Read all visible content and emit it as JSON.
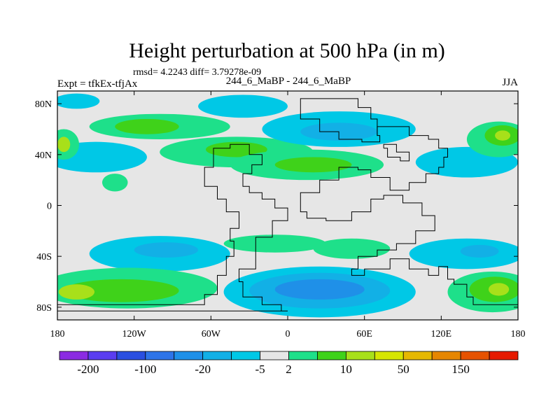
{
  "chart_data": {
    "type": "heatmap",
    "title": "Height perturbation at 500 hPa (in m)",
    "subtitle": "rmsd= 4.2243 diff= 3.79278e-09",
    "left_label": "Expt = tfkEx-tfjAx",
    "center_label": "244_6_MaBP - 244_6_MaBP",
    "right_label": "JJA",
    "xlim": [
      -180,
      180
    ],
    "ylim": [
      -90,
      90
    ],
    "x_ticks": [
      {
        "value": -180,
        "label": "180"
      },
      {
        "value": -120,
        "label": "120W"
      },
      {
        "value": -60,
        "label": "60W"
      },
      {
        "value": 0,
        "label": "0"
      },
      {
        "value": 60,
        "label": "60E"
      },
      {
        "value": 120,
        "label": "120E"
      },
      {
        "value": 180,
        "label": "180"
      }
    ],
    "y_ticks": [
      {
        "value": 80,
        "label": "80N"
      },
      {
        "value": 40,
        "label": "40N"
      },
      {
        "value": 0,
        "label": "0"
      },
      {
        "value": -40,
        "label": "40S"
      },
      {
        "value": -80,
        "label": "80S"
      }
    ],
    "colorbar": {
      "colors": [
        "#8b2be2",
        "#5a3df0",
        "#2a4fe0",
        "#2e74e8",
        "#1f90e8",
        "#12b0e6",
        "#00c8e6",
        "#e6e6e6",
        "#1ee08a",
        "#3fd21a",
        "#a8e01a",
        "#d6e600",
        "#e6b800",
        "#e68600",
        "#e65200",
        "#e61a00"
      ],
      "labels": [
        "-200",
        "-100",
        "-20",
        "-5",
        "2",
        "10",
        "50",
        "150"
      ],
      "label_edges": [
        1,
        3,
        5,
        7,
        8,
        10,
        12,
        14
      ]
    },
    "color_levels": {
      "cyan": "#00c8e6",
      "light_blue": "#12b0e6",
      "mid_blue": "#1f90e8",
      "teal": "#1ee08a",
      "green": "#3fd21a",
      "lime": "#a8e01a",
      "neutral": "#e6e6e6"
    },
    "anomaly_regions": [
      {
        "shape": "ellipse",
        "lon": -100,
        "lat": 62,
        "rlon": 55,
        "rlat": 10,
        "level": "teal"
      },
      {
        "shape": "ellipse",
        "lon": -110,
        "lat": 62,
        "rlon": 25,
        "rlat": 6,
        "level": "green"
      },
      {
        "shape": "ellipse",
        "lon": -165,
        "lat": 82,
        "rlon": 18,
        "rlat": 6,
        "level": "cyan"
      },
      {
        "shape": "ellipse",
        "lon": -35,
        "lat": 78,
        "rlon": 35,
        "rlat": 9,
        "level": "cyan"
      },
      {
        "shape": "ellipse",
        "lon": -150,
        "lat": 38,
        "rlon": 40,
        "rlat": 12,
        "level": "cyan"
      },
      {
        "shape": "ellipse",
        "lon": -175,
        "lat": 48,
        "rlon": 12,
        "rlat": 12,
        "level": "teal"
      },
      {
        "shape": "ellipse",
        "lon": -175,
        "lat": 48,
        "rlon": 5,
        "rlat": 6,
        "level": "lime"
      },
      {
        "shape": "ellipse",
        "lon": -135,
        "lat": 18,
        "rlon": 10,
        "rlat": 7,
        "level": "teal"
      },
      {
        "shape": "ellipse",
        "lon": -40,
        "lat": 42,
        "rlon": 60,
        "rlat": 12,
        "level": "teal"
      },
      {
        "shape": "ellipse",
        "lon": -40,
        "lat": 44,
        "rlon": 24,
        "rlat": 6,
        "level": "green"
      },
      {
        "shape": "ellipse",
        "lon": 40,
        "lat": 60,
        "rlon": 60,
        "rlat": 14,
        "level": "cyan"
      },
      {
        "shape": "ellipse",
        "lon": 40,
        "lat": 58,
        "rlon": 30,
        "rlat": 7,
        "level": "light_blue"
      },
      {
        "shape": "ellipse",
        "lon": 15,
        "lat": 32,
        "rlon": 60,
        "rlat": 12,
        "level": "teal"
      },
      {
        "shape": "ellipse",
        "lon": 20,
        "lat": 32,
        "rlon": 30,
        "rlat": 6,
        "level": "green"
      },
      {
        "shape": "ellipse",
        "lon": 140,
        "lat": 34,
        "rlon": 40,
        "rlat": 12,
        "level": "cyan"
      },
      {
        "shape": "ellipse",
        "lon": 165,
        "lat": 52,
        "rlon": 25,
        "rlat": 14,
        "level": "teal"
      },
      {
        "shape": "ellipse",
        "lon": 168,
        "lat": 55,
        "rlon": 14,
        "rlat": 8,
        "level": "green"
      },
      {
        "shape": "ellipse",
        "lon": 168,
        "lat": 55,
        "rlon": 6,
        "rlat": 4,
        "level": "lime"
      },
      {
        "shape": "ellipse",
        "lon": -100,
        "lat": -38,
        "rlon": 55,
        "rlat": 14,
        "level": "cyan"
      },
      {
        "shape": "ellipse",
        "lon": -95,
        "lat": -35,
        "rlon": 25,
        "rlat": 6,
        "level": "light_blue"
      },
      {
        "shape": "ellipse",
        "lon": -125,
        "lat": -65,
        "rlon": 70,
        "rlat": 16,
        "level": "teal"
      },
      {
        "shape": "ellipse",
        "lon": -130,
        "lat": -67,
        "rlon": 45,
        "rlat": 9,
        "level": "green"
      },
      {
        "shape": "ellipse",
        "lon": -165,
        "lat": -68,
        "rlon": 14,
        "rlat": 6,
        "level": "lime"
      },
      {
        "shape": "ellipse",
        "lon": -10,
        "lat": -30,
        "rlon": 40,
        "rlat": 7,
        "level": "teal"
      },
      {
        "shape": "ellipse",
        "lon": 50,
        "lat": -34,
        "rlon": 30,
        "rlat": 8,
        "level": "teal"
      },
      {
        "shape": "ellipse",
        "lon": 25,
        "lat": -68,
        "rlon": 75,
        "rlat": 20,
        "level": "cyan"
      },
      {
        "shape": "ellipse",
        "lon": 25,
        "lat": -67,
        "rlon": 55,
        "rlat": 14,
        "level": "light_blue"
      },
      {
        "shape": "ellipse",
        "lon": 25,
        "lat": -66,
        "rlon": 35,
        "rlat": 8,
        "level": "mid_blue"
      },
      {
        "shape": "ellipse",
        "lon": 140,
        "lat": -38,
        "rlon": 45,
        "rlat": 12,
        "level": "cyan"
      },
      {
        "shape": "ellipse",
        "lon": 150,
        "lat": -36,
        "rlon": 15,
        "rlat": 5,
        "level": "light_blue"
      },
      {
        "shape": "ellipse",
        "lon": 160,
        "lat": -68,
        "rlon": 35,
        "rlat": 16,
        "level": "teal"
      },
      {
        "shape": "ellipse",
        "lon": 162,
        "lat": -66,
        "rlon": 20,
        "rlat": 10,
        "level": "green"
      },
      {
        "shape": "ellipse",
        "lon": 165,
        "lat": -66,
        "rlon": 8,
        "rlat": 5,
        "level": "lime"
      }
    ],
    "continent_outlines": [
      {
        "name": "americas",
        "points": [
          [
            -180,
            -83
          ],
          [
            -180,
            -78
          ],
          [
            -65,
            -78
          ],
          [
            -55,
            -70
          ],
          [
            -48,
            -55
          ],
          [
            -42,
            -40
          ],
          [
            -45,
            -28
          ],
          [
            -38,
            -18
          ],
          [
            -48,
            -5
          ],
          [
            -55,
            5
          ],
          [
            -65,
            15
          ],
          [
            -58,
            30
          ],
          [
            -45,
            45
          ],
          [
            -30,
            48
          ],
          [
            -20,
            40
          ],
          [
            -28,
            32
          ],
          [
            -35,
            25
          ],
          [
            -30,
            15
          ],
          [
            -20,
            10
          ],
          [
            -10,
            5
          ],
          [
            0,
            -2
          ],
          [
            -12,
            -12
          ],
          [
            -25,
            -25
          ],
          [
            -38,
            -50
          ],
          [
            -35,
            -60
          ],
          [
            -20,
            -72
          ],
          [
            -5,
            -78
          ],
          [
            0,
            -83
          ],
          [
            -180,
            -83
          ]
        ]
      },
      {
        "name": "greenland",
        "points": [
          [
            10,
            80
          ],
          [
            25,
            84
          ],
          [
            55,
            84
          ],
          [
            65,
            77
          ],
          [
            70,
            68
          ],
          [
            72,
            55
          ],
          [
            58,
            50
          ],
          [
            40,
            52
          ],
          [
            25,
            58
          ],
          [
            10,
            68
          ],
          [
            10,
            80
          ]
        ]
      },
      {
        "name": "eurasia",
        "points": [
          [
            70,
            55
          ],
          [
            78,
            62
          ],
          [
            95,
            62
          ],
          [
            110,
            55
          ],
          [
            118,
            52
          ],
          [
            125,
            45
          ],
          [
            122,
            38
          ],
          [
            118,
            30
          ],
          [
            108,
            25
          ],
          [
            95,
            18
          ],
          [
            80,
            12
          ],
          [
            65,
            22
          ],
          [
            55,
            28
          ],
          [
            40,
            30
          ],
          [
            25,
            20
          ],
          [
            10,
            10
          ],
          [
            15,
            -5
          ],
          [
            30,
            -10
          ],
          [
            50,
            -12
          ],
          [
            65,
            -5
          ],
          [
            75,
            5
          ],
          [
            90,
            8
          ],
          [
            105,
            2
          ],
          [
            115,
            -8
          ],
          [
            100,
            -20
          ],
          [
            85,
            -30
          ],
          [
            70,
            -35
          ],
          [
            55,
            -40
          ],
          [
            50,
            -50
          ],
          [
            60,
            -55
          ],
          [
            80,
            -50
          ],
          [
            95,
            -42
          ],
          [
            110,
            -50
          ],
          [
            118,
            -55
          ],
          [
            125,
            -48
          ],
          [
            130,
            -58
          ],
          [
            140,
            -62
          ],
          [
            145,
            -72
          ],
          [
            155,
            -78
          ],
          [
            180,
            -78
          ]
        ]
      },
      {
        "name": "island",
        "points": [
          [
            75,
            45
          ],
          [
            85,
            48
          ],
          [
            95,
            42
          ],
          [
            88,
            35
          ],
          [
            78,
            38
          ],
          [
            75,
            45
          ]
        ]
      }
    ]
  }
}
